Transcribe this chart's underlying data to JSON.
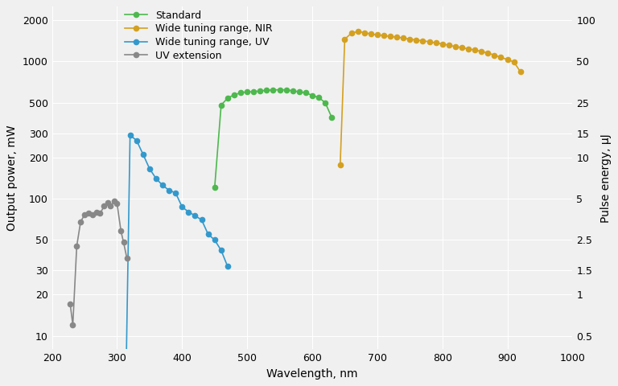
{
  "xlabel": "Wavelength, nm",
  "ylabel_left": "Output power, mW",
  "ylabel_right": "Pulse energy, μJ",
  "xlim": [
    200,
    1000
  ],
  "ylim_left": [
    8,
    2500
  ],
  "ylim_right": [
    0.4,
    125
  ],
  "bg_color": "#f0f0f0",
  "plot_bg": "#f0f0f0",
  "standard": {
    "color": "#4db84d",
    "label": "Standard",
    "x": [
      450,
      460,
      470,
      480,
      490,
      500,
      510,
      520,
      530,
      540,
      550,
      560,
      570,
      580,
      590,
      600,
      610,
      620,
      630
    ],
    "y": [
      120,
      480,
      540,
      570,
      590,
      600,
      600,
      610,
      615,
      620,
      620,
      620,
      610,
      600,
      590,
      565,
      545,
      500,
      390
    ]
  },
  "nir": {
    "color": "#d4a020",
    "label": "Wide tuning range, NIR",
    "x": [
      643,
      650,
      660,
      670,
      680,
      690,
      700,
      710,
      720,
      730,
      740,
      750,
      760,
      770,
      780,
      790,
      800,
      810,
      820,
      830,
      840,
      850,
      860,
      870,
      880,
      890,
      900,
      910,
      920
    ],
    "y": [
      175,
      1450,
      1600,
      1650,
      1620,
      1580,
      1560,
      1540,
      1520,
      1500,
      1480,
      1450,
      1430,
      1410,
      1390,
      1360,
      1340,
      1310,
      1280,
      1260,
      1230,
      1210,
      1180,
      1150,
      1110,
      1070,
      1030,
      990,
      840
    ]
  },
  "uv": {
    "color": "#3399cc",
    "label": "Wide tuning range, UV",
    "x": [
      313,
      320,
      330,
      340,
      350,
      360,
      370,
      380,
      390,
      400,
      410,
      420,
      430,
      440,
      450,
      460,
      470
    ],
    "y": [
      3,
      290,
      265,
      210,
      165,
      140,
      125,
      115,
      110,
      87,
      80,
      75,
      70,
      55,
      50,
      42,
      32
    ]
  },
  "uv_ext": {
    "color": "#888888",
    "label": "UV extension",
    "x": [
      228,
      232,
      238,
      244,
      250,
      256,
      262,
      268,
      274,
      280,
      286,
      290,
      296,
      300,
      306,
      310,
      315
    ],
    "y": [
      17,
      12,
      45,
      68,
      76,
      78,
      76,
      80,
      78,
      88,
      93,
      88,
      96,
      92,
      58,
      48,
      37
    ]
  },
  "yticks_left": [
    10,
    20,
    30,
    50,
    100,
    200,
    300,
    500,
    1000,
    2000
  ],
  "ytick_labels_left": [
    "10",
    "20",
    "30",
    "50",
    "100",
    "200",
    "300",
    "500",
    "1000",
    "2000"
  ],
  "yticks_right": [
    0.5,
    1,
    1.5,
    2.5,
    5,
    10,
    15,
    25,
    50,
    100
  ],
  "ytick_labels_right": [
    "0.5",
    "1",
    "1.5",
    "2.5",
    "5",
    "10",
    "15",
    "25",
    "50",
    "100"
  ],
  "xticks": [
    200,
    300,
    400,
    500,
    600,
    700,
    800,
    900,
    1000
  ],
  "xtick_labels": [
    "200",
    "300",
    "400",
    "500",
    "600",
    "700",
    "800",
    "900",
    "1000"
  ]
}
